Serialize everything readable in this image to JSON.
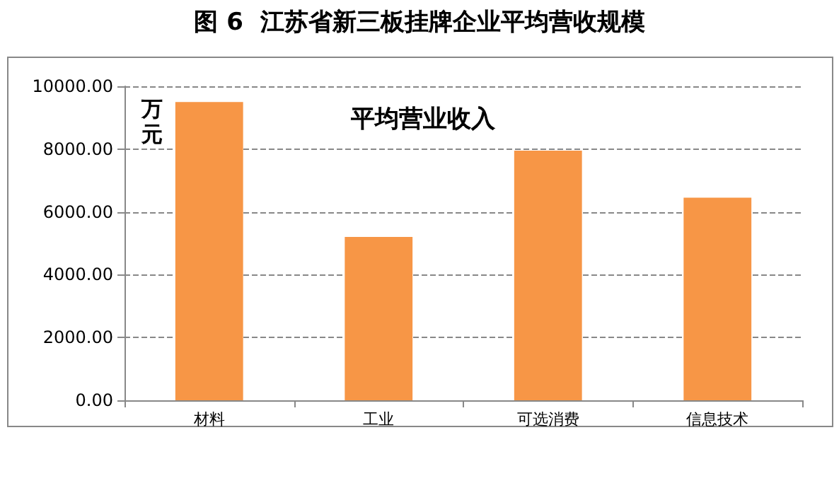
{
  "chart_data": {
    "type": "bar",
    "title": "图 6  江苏省新三板挂牌企业平均营收规模",
    "subtitle": "平均营业收入",
    "ylabel": "万元",
    "categories": [
      "材料",
      "工业",
      "可选消费",
      "信息技术"
    ],
    "series": [
      {
        "color": "#f79646",
        "values": [
          9500,
          5200,
          7950,
          6450
        ]
      }
    ],
    "ylim": [
      0,
      10000
    ],
    "yticks": [
      {
        "value": 0,
        "label": "0.00"
      },
      {
        "value": 2000,
        "label": "2000.00"
      },
      {
        "value": 4000,
        "label": "4000.00"
      },
      {
        "value": 6000,
        "label": "6000.00"
      },
      {
        "value": 8000,
        "label": "8000.00"
      },
      {
        "value": 10000,
        "label": "10000.00"
      }
    ],
    "grid": "y"
  }
}
